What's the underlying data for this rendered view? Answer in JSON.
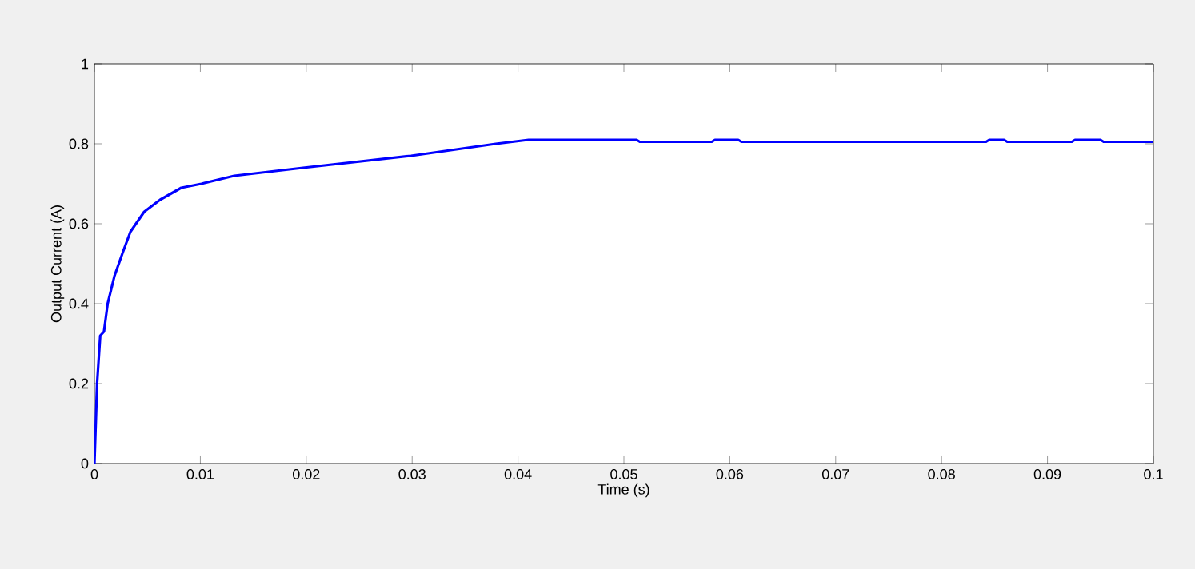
{
  "chart_data": {
    "type": "line",
    "xlabel": "Time (s)",
    "ylabel": "Output Current (A)",
    "xlim": [
      0,
      0.1
    ],
    "ylim": [
      0,
      1
    ],
    "xticks": [
      0,
      0.01,
      0.02,
      0.03,
      0.04,
      0.05,
      0.06,
      0.07,
      0.08,
      0.09,
      0.1
    ],
    "yticks": [
      0,
      0.2,
      0.4,
      0.6,
      0.8,
      1
    ],
    "series": [
      {
        "color": "#0000ff",
        "x": [
          0,
          0.0001,
          0.00025,
          0.00055,
          0.0009,
          0.00125,
          0.0019,
          0.0027,
          0.0034,
          0.0047,
          0.0062,
          0.0082,
          0.0101,
          0.0132,
          0.0197,
          0.0299,
          0.0379,
          0.041,
          0.0512,
          0.0515,
          0.0583,
          0.0586,
          0.0608,
          0.0611,
          0.0842,
          0.0845,
          0.0859,
          0.0862,
          0.0923,
          0.0926,
          0.095,
          0.0953,
          0.1
        ],
        "values": [
          0,
          0.08,
          0.2,
          0.32,
          0.33,
          0.4,
          0.47,
          0.53,
          0.58,
          0.63,
          0.66,
          0.69,
          0.7,
          0.72,
          0.74,
          0.77,
          0.8,
          0.81,
          0.81,
          0.805,
          0.805,
          0.81,
          0.81,
          0.805,
          0.805,
          0.81,
          0.81,
          0.805,
          0.805,
          0.81,
          0.81,
          0.805,
          0.805
        ]
      }
    ]
  }
}
